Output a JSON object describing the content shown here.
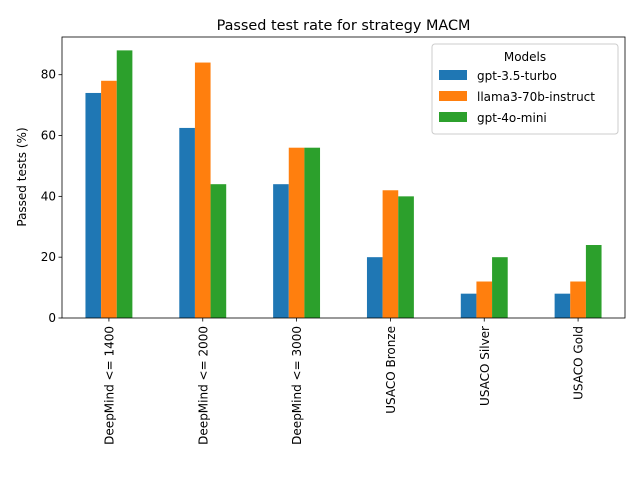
{
  "chart_data": {
    "type": "bar",
    "title": "Passed test rate for strategy MACM",
    "xlabel": "",
    "ylabel": "Passed tests (%)",
    "ylim": [
      0,
      92.4
    ],
    "yticks": [
      0,
      20,
      40,
      60,
      80
    ],
    "grid": false,
    "legend": {
      "title": "Models",
      "placement": "top-right"
    },
    "categories": [
      "DeepMind <= 1400",
      "DeepMind <= 2000",
      "DeepMind <= 3000",
      "USACO Bronze",
      "USACO Silver",
      "USACO Gold"
    ],
    "series": [
      {
        "name": "gpt-3.5-turbo",
        "color": "#1f77b4",
        "values": [
          74,
          62.5,
          44,
          20,
          8,
          8
        ]
      },
      {
        "name": "llama3-70b-instruct",
        "color": "#ff7f0e",
        "values": [
          78,
          84,
          56,
          42,
          12,
          12
        ]
      },
      {
        "name": "gpt-4o-mini",
        "color": "#2ca02c",
        "values": [
          88,
          44,
          56,
          40,
          20,
          24
        ]
      }
    ]
  }
}
